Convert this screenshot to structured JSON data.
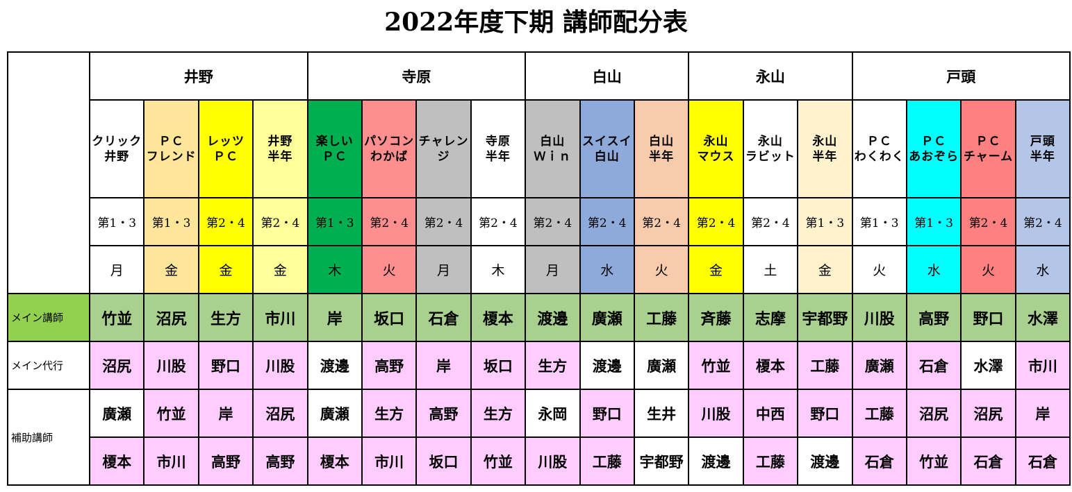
{
  "title": "2022年度下期  講師配分表",
  "locations": [
    {
      "name": "井野",
      "span": 4
    },
    {
      "name": "寺原",
      "span": 4
    },
    {
      "name": "白山",
      "span": 3
    },
    {
      "name": "永山",
      "span": 3
    },
    {
      "name": "戸頭",
      "span": 4
    }
  ],
  "row_labels": {
    "main": "メイン講師",
    "substitute": "メイン代行",
    "assistant": "補助講師"
  },
  "courses": [
    {
      "l1": "クリック",
      "l2": "井野",
      "week": "第1・3",
      "day": "月",
      "color": "#ffffff",
      "main": "竹並",
      "sub": "沼尻",
      "a1": "廣瀬",
      "a2": "榎本",
      "subc": "#ffccff",
      "a1c": "#ffffff",
      "a2c": "#ffccff"
    },
    {
      "l1": "ＰＣ",
      "l2": "フレンド",
      "week": "第1・3",
      "day": "金",
      "color": "#ffe699",
      "main": "沼尻",
      "sub": "川股",
      "a1": "竹並",
      "a2": "市川",
      "subc": "#ffccff",
      "a1c": "#ffccff",
      "a2c": "#ffccff"
    },
    {
      "l1": "レッツ",
      "l2": "ＰＣ",
      "week": "第2・4",
      "day": "金",
      "color": "#ffff00",
      "main": "生方",
      "sub": "野口",
      "a1": "岸",
      "a2": "高野",
      "subc": "#ffccff",
      "a1c": "#ffccff",
      "a2c": "#ffccff"
    },
    {
      "l1": "井野",
      "l2": "半年",
      "week": "第2・4",
      "day": "金",
      "color": "#ffff99",
      "main": "市川",
      "sub": "川股",
      "a1": "沼尻",
      "a2": "高野",
      "subc": "#ffccff",
      "a1c": "#ffccff",
      "a2c": "#ffccff"
    },
    {
      "l1": "楽しい",
      "l2": "ＰＣ",
      "week": "第1・3",
      "day": "木",
      "color": "#00b050",
      "main": "岸",
      "sub": "渡邊",
      "a1": "廣瀬",
      "a2": "榎本",
      "subc": "#ffffff",
      "a1c": "#ffffff",
      "a2c": "#ffccff"
    },
    {
      "l1": "パソコン",
      "l2": "わかば",
      "week": "第2・4",
      "day": "火",
      "color": "#ff8f8f",
      "main": "坂口",
      "sub": "高野",
      "a1": "生方",
      "a2": "市川",
      "subc": "#ffccff",
      "a1c": "#ffccff",
      "a2c": "#ffccff"
    },
    {
      "l1": "チャレン",
      "l2": "ジ",
      "week": "第2・4",
      "day": "月",
      "color": "#bfbfbf",
      "main": "石倉",
      "sub": "岸",
      "a1": "高野",
      "a2": "坂口",
      "subc": "#ffccff",
      "a1c": "#ffccff",
      "a2c": "#ffccff"
    },
    {
      "l1": "寺原",
      "l2": "半年",
      "week": "第2・4",
      "day": "木",
      "color": "#ffffff",
      "main": "榎本",
      "sub": "坂口",
      "a1": "生方",
      "a2": "竹並",
      "subc": "#ffccff",
      "a1c": "#ffccff",
      "a2c": "#ffccff"
    },
    {
      "l1": "白山",
      "l2": "Ｗｉｎ",
      "week": "第2・4",
      "day": "月",
      "color": "#bfbfbf",
      "main": "渡邊",
      "sub": "生方",
      "a1": "永岡",
      "a2": "川股",
      "subc": "#ffccff",
      "a1c": "#ffffff",
      "a2c": "#ffccff"
    },
    {
      "l1": "スイスイ",
      "l2": "白山",
      "week": "第2・4",
      "day": "水",
      "color": "#8eaadb",
      "main": "廣瀬",
      "sub": "渡邊",
      "a1": "野口",
      "a2": "工藤",
      "subc": "#ffffff",
      "a1c": "#ffccff",
      "a2c": "#ffccff"
    },
    {
      "l1": "白山",
      "l2": "半年",
      "week": "第2・4",
      "day": "火",
      "color": "#f8cbad",
      "main": "工藤",
      "sub": "廣瀬",
      "a1": "生井",
      "a2": "宇都野",
      "subc": "#ffffff",
      "a1c": "#ffffff",
      "a2c": "#ffffff"
    },
    {
      "l1": "永山",
      "l2": "マウス",
      "week": "第2・4",
      "day": "金",
      "color": "#ffff00",
      "main": "斉藤",
      "sub": "竹並",
      "a1": "川股",
      "a2": "渡邊",
      "subc": "#ffccff",
      "a1c": "#ffccff",
      "a2c": "#ffffff"
    },
    {
      "l1": "永山",
      "l2": "ラビット",
      "week": "第2・4",
      "day": "土",
      "color": "#ffffff",
      "main": "志摩",
      "sub": "榎本",
      "a1": "中西",
      "a2": "工藤",
      "subc": "#ffccff",
      "a1c": "#ffccff",
      "a2c": "#ffccff"
    },
    {
      "l1": "永山",
      "l2": "半年",
      "week": "第1・3",
      "day": "金",
      "color": "#fff2cc",
      "main": "宇都野",
      "sub": "工藤",
      "a1": "野口",
      "a2": "渡邊",
      "subc": "#ffccff",
      "a1c": "#ffccff",
      "a2c": "#ffffff"
    },
    {
      "l1": "ＰＣ",
      "l2": "わくわく",
      "week": "第1・3",
      "day": "火",
      "color": "#ffffff",
      "main": "川股",
      "sub": "廣瀬",
      "a1": "工藤",
      "a2": "石倉",
      "subc": "#ffccff",
      "a1c": "#ffccff",
      "a2c": "#ffccff"
    },
    {
      "l1": "ＰＣ",
      "l2": "あおぞら",
      "week": "第1・3",
      "day": "水",
      "color": "#00ffff",
      "main": "高野",
      "sub": "石倉",
      "a1": "沼尻",
      "a2": "竹並",
      "subc": "#ffccff",
      "a1c": "#ffccff",
      "a2c": "#ffccff"
    },
    {
      "l1": "ＰＣ",
      "l2": "チャーム",
      "week": "第2・4",
      "day": "火",
      "color": "#ff8080",
      "main": "野口",
      "sub": "水澤",
      "a1": "沼尻",
      "a2": "石倉",
      "subc": "#ffffff",
      "a1c": "#ffccff",
      "a2c": "#ffccff"
    },
    {
      "l1": "戸頭",
      "l2": "半年",
      "week": "第2・4",
      "day": "水",
      "color": "#b4c6e7",
      "main": "水澤",
      "sub": "市川",
      "a1": "岸",
      "a2": "石倉",
      "subc": "#ffccff",
      "a1c": "#ffccff",
      "a2c": "#ffccff"
    }
  ]
}
